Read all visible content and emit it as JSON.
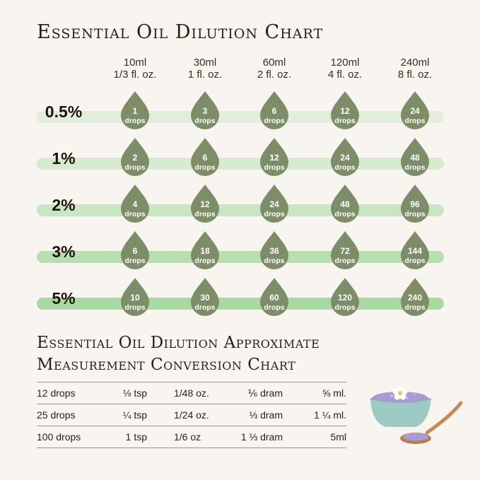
{
  "title": "Essential Oil Dilution Chart",
  "columns": [
    {
      "volume": "10ml",
      "floz": "1/3 fl. oz."
    },
    {
      "volume": "30ml",
      "floz": "1 fl. oz."
    },
    {
      "volume": "60ml",
      "floz": "2 fl. oz."
    },
    {
      "volume": "120ml",
      "floz": "4 fl. oz."
    },
    {
      "volume": "240ml",
      "floz": "8 fl. oz."
    }
  ],
  "drop_unit": "drops",
  "rows": [
    {
      "percent": "0.5%",
      "drops": [
        "1",
        "3",
        "6",
        "12",
        "24"
      ]
    },
    {
      "percent": "1%",
      "drops": [
        "2",
        "6",
        "12",
        "24",
        "48"
      ]
    },
    {
      "percent": "2%",
      "drops": [
        "4",
        "12",
        "24",
        "48",
        "96"
      ]
    },
    {
      "percent": "3%",
      "drops": [
        "6",
        "18",
        "36",
        "72",
        "144"
      ]
    },
    {
      "percent": "5%",
      "drops": [
        "10",
        "30",
        "60",
        "120",
        "240"
      ]
    }
  ],
  "colors": {
    "drop": "#7c8d67",
    "bars": [
      "#e2eedb",
      "#d6ebcf",
      "#c9e6c2",
      "#b7dfb0",
      "#a9d9a2"
    ],
    "background": "#f8f4ef",
    "text": "#2b1d12"
  },
  "conversion": {
    "title_line1": "Essential Oil Dilution Approximate",
    "title_line2": "Measurement Conversion Chart",
    "rows": [
      [
        "12 drops",
        "⅛ tsp",
        "1/48 oz.",
        "⅙ dram",
        "⅝ ml."
      ],
      [
        "25 drops",
        "¼ tsp",
        "1/24 oz.",
        "⅓ dram",
        "1 ¼ ml."
      ],
      [
        "100 drops",
        "1 tsp",
        "1/6 oz",
        "1 ⅓ dram",
        "5ml"
      ]
    ]
  },
  "illustration": "bath-salt-bowl-with-spoon-and-flower"
}
